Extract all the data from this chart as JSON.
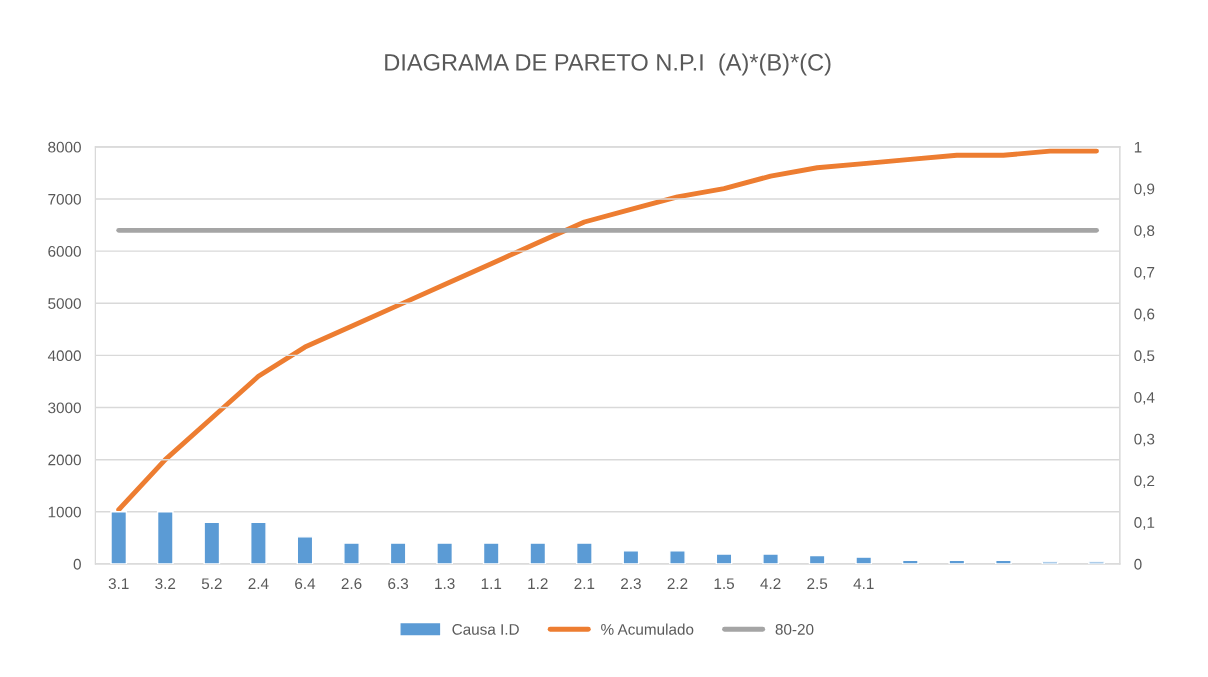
{
  "chart_data": {
    "type": "bar",
    "title": "DIAGRAMA DE PARETO N.P.I  (A)*(B)*(C)",
    "categories": [
      "3.1",
      "3.2",
      "5.2",
      "2.4",
      "6.4",
      "2.6",
      "6.3",
      "1.3",
      "1.1",
      "1.2",
      "2.1",
      "2.3",
      "2.2",
      "1.5",
      "4.2",
      "2.5",
      "4.1",
      null,
      null,
      null,
      null,
      null
    ],
    "series": [
      {
        "name": "Causa I.D",
        "color": "#5b9bd5",
        "values": [
          1000,
          1000,
          800,
          800,
          520,
          400,
          400,
          400,
          400,
          400,
          400,
          250,
          250,
          190,
          190,
          160,
          130,
          70,
          70,
          70,
          40,
          40
        ]
      },
      {
        "name": "% Acumulado",
        "type": "line",
        "axis": "y2",
        "color": "#ed7d31",
        "values": [
          0.13,
          0.25,
          0.35,
          0.45,
          0.52,
          0.57,
          0.62,
          0.67,
          0.72,
          0.77,
          0.82,
          0.85,
          0.88,
          0.9,
          0.93,
          0.95,
          0.96,
          0.97,
          0.98,
          0.98,
          0.99,
          0.99
        ]
      },
      {
        "name": "80-20",
        "type": "line",
        "axis": "y2",
        "color": "#a5a5a5",
        "values": [
          0.8,
          0.8,
          0.8,
          0.8,
          0.8,
          0.8,
          0.8,
          0.8,
          0.8,
          0.8,
          0.8,
          0.8,
          0.8,
          0.8,
          0.8,
          0.8,
          0.8,
          0.8,
          0.8,
          0.8,
          0.8,
          0.8
        ]
      }
    ],
    "ylim": [
      0,
      8000
    ],
    "yticks": [
      0,
      1000,
      2000,
      3000,
      4000,
      5000,
      6000,
      7000,
      8000
    ],
    "y2lim": [
      0,
      1
    ],
    "y2ticks": [
      0,
      {
        "value": 0.1,
        "label": "0,1"
      },
      {
        "value": 0.2,
        "label": "0,2"
      },
      {
        "value": 0.3,
        "label": "0,3"
      },
      {
        "value": 0.4,
        "label": "0,4"
      },
      {
        "value": 0.5,
        "label": "0,5"
      },
      {
        "value": 0.6,
        "label": "0,6"
      },
      {
        "value": 0.7,
        "label": "0,7"
      },
      {
        "value": 0.8,
        "label": "0,8"
      },
      {
        "value": 0.9,
        "label": "0,9"
      },
      1
    ],
    "grid": "y",
    "legend": "bottom",
    "marker": "none",
    "line_style": "solid"
  }
}
